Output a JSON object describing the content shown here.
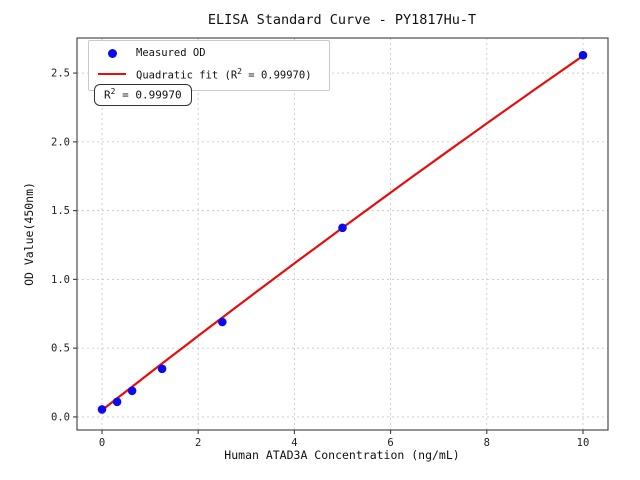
{
  "chart_data": {
    "type": "scatter",
    "title": "ELISA Standard Curve - PY1817Hu-T",
    "xlabel": "Human ATAD3A Concentration (ng/mL)",
    "ylabel": "OD Value(450nm)",
    "xlim": [
      -0.52,
      10.52
    ],
    "ylim": [
      -0.095,
      2.755
    ],
    "x_ticks": [
      "0",
      "2",
      "4",
      "6",
      "8",
      "10"
    ],
    "y_ticks": [
      "0.0",
      "0.5",
      "1.0",
      "1.5",
      "2.0",
      "2.5"
    ],
    "grid": true,
    "legend_position": "upper-left",
    "series": [
      {
        "name": "Measured OD",
        "type": "scatter",
        "x": [
          0,
          0.313,
          0.625,
          1.25,
          2.5,
          5,
          10
        ],
        "y": [
          0.055,
          0.11,
          0.19,
          0.35,
          0.69,
          1.375,
          2.63
        ]
      },
      {
        "name": "Quadratic fit (R2 = 0.99970)",
        "type": "line",
        "fit": {
          "kind": "quadratic",
          "a": 0.05,
          "b": 0.2725,
          "c": -0.0015,
          "x_range": [
            0,
            10
          ],
          "r_squared": "0.99970"
        }
      }
    ],
    "colors": {
      "marker": "#0b0bee",
      "fit_line": "#e80c0c",
      "grid": "#c9c9c9",
      "spine": "#3c3c3c"
    }
  },
  "legend": {
    "measured_label": "Measured OD",
    "fit_pre": "Quadratic fit (R",
    "fit_sup": "2",
    "fit_post": " = 0.99970)"
  },
  "annotation": {
    "pre": "R",
    "sup": "2",
    "post": " = 0.99970"
  }
}
